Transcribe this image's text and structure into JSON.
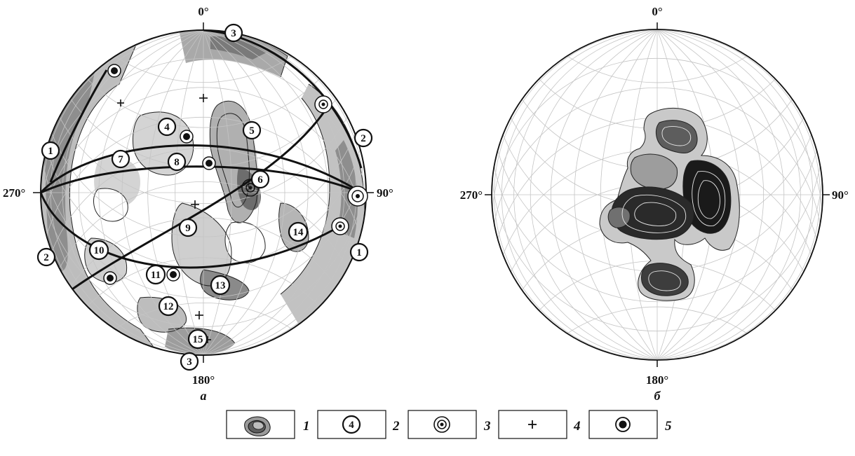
{
  "diagram_a": {
    "label": "а",
    "azimuths": {
      "north": "0°",
      "east": "90°",
      "south": "180°",
      "west": "270°"
    },
    "numbered_markers": [
      {
        "id": "m3-top",
        "text": "3"
      },
      {
        "id": "m2-right",
        "text": "2"
      },
      {
        "id": "m1-left",
        "text": "1"
      },
      {
        "id": "m4",
        "text": "4"
      },
      {
        "id": "m5",
        "text": "5"
      },
      {
        "id": "m7",
        "text": "7"
      },
      {
        "id": "m8",
        "text": "8"
      },
      {
        "id": "m6",
        "text": "6"
      },
      {
        "id": "m9",
        "text": "9"
      },
      {
        "id": "m14",
        "text": "14"
      },
      {
        "id": "m1-right",
        "text": "1"
      },
      {
        "id": "m2-left",
        "text": "2"
      },
      {
        "id": "m10",
        "text": "10"
      },
      {
        "id": "m11",
        "text": "11"
      },
      {
        "id": "m13",
        "text": "13"
      },
      {
        "id": "m12",
        "text": "12"
      },
      {
        "id": "m15",
        "text": "15"
      },
      {
        "id": "m3-bottom",
        "text": "3"
      }
    ]
  },
  "diagram_b": {
    "label": "б",
    "azimuths": {
      "north": "0°",
      "east": "90°",
      "south": "180°",
      "west": "270°"
    }
  },
  "legend": [
    {
      "key": "1",
      "text": "1",
      "symbol": "density-contours"
    },
    {
      "key": "2",
      "text": "2",
      "symbol": "circled-number",
      "symbol_text": "4"
    },
    {
      "key": "3",
      "text": "3",
      "symbol": "double-circle-dot"
    },
    {
      "key": "4",
      "text": "4",
      "symbol": "plus"
    },
    {
      "key": "5",
      "text": "5",
      "symbol": "circle-filled-dot"
    }
  ],
  "colors": {
    "ink": "#111111",
    "shade_dark": "#7a7a7a",
    "shade_mid": "#a9a9a9",
    "shade_light": "#d4d4d4",
    "grid": "#bdbdbd"
  }
}
